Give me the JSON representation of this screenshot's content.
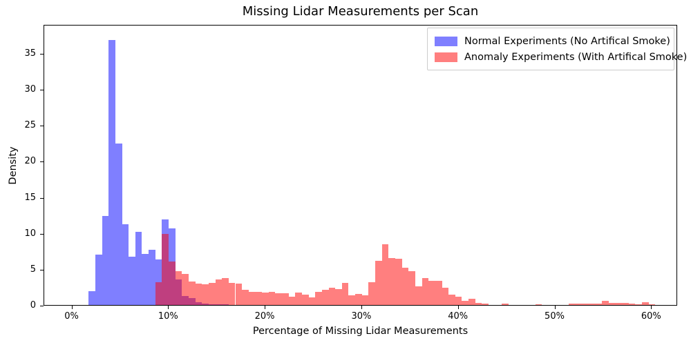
{
  "title": "Missing Lidar Measurements per Scan",
  "xlabel": "Percentage of Missing Lidar Measurements",
  "ylabel": "Density",
  "legend": {
    "items": [
      {
        "label": "Normal Experiments (No Artifical Smoke)",
        "color": "rgba(0,0,255,0.5)"
      },
      {
        "label": "Anomaly Experiments (With Artifical Smoke)",
        "color": "rgba(255,0,0,0.5)"
      }
    ]
  },
  "colors": {
    "normal_fill": "#8080ff",
    "anomaly_fill": "#ff8080",
    "overlap_fill": "#bf4080",
    "spine": "#000000"
  },
  "chart_data": {
    "type": "bar",
    "subtype": "overlapping-density-histograms",
    "title": "Missing Lidar Measurements per Scan",
    "xlabel": "Percentage of Missing Lidar Measurements",
    "ylabel": "Density",
    "xlim": [
      -2.9,
      62.7
    ],
    "ylim": [
      0,
      39
    ],
    "grid": false,
    "legend_position": "upper right",
    "x_ticks": [
      {
        "value": 0,
        "label": "0%"
      },
      {
        "value": 10,
        "label": "10%"
      },
      {
        "value": 20,
        "label": "20%"
      },
      {
        "value": 30,
        "label": "30%"
      },
      {
        "value": 40,
        "label": "40%"
      },
      {
        "value": 50,
        "label": "50%"
      },
      {
        "value": 60,
        "label": "60%"
      }
    ],
    "y_ticks": [
      {
        "value": 0,
        "label": "0"
      },
      {
        "value": 5,
        "label": "5"
      },
      {
        "value": 10,
        "label": "10"
      },
      {
        "value": 15,
        "label": "15"
      },
      {
        "value": 20,
        "label": "20"
      },
      {
        "value": 25,
        "label": "25"
      },
      {
        "value": 30,
        "label": "30"
      },
      {
        "value": 35,
        "label": "35"
      }
    ],
    "series": [
      {
        "name": "Normal Experiments (No Artifical Smoke)",
        "color": "rgba(0,0,255,0.5)",
        "bin_start_percent": 1.7,
        "bin_width_percent": 0.69,
        "densities": [
          1.9,
          7.0,
          12.4,
          36.8,
          22.4,
          11.2,
          6.7,
          10.2,
          7.1,
          7.7,
          6.3,
          11.9,
          10.6,
          3.5,
          1.2,
          1.0,
          0.35,
          0.15,
          0.1,
          0.08,
          0.06
        ]
      },
      {
        "name": "Anomaly Experiments (With Artifical Smoke)",
        "color": "rgba(255,0,0,0.5)",
        "bin_start_percent": 8.6,
        "bin_width_percent": 0.69,
        "densities": [
          3.2,
          9.9,
          6.0,
          4.7,
          4.35,
          3.3,
          3.0,
          2.9,
          3.1,
          3.55,
          3.7,
          3.1,
          2.95,
          2.1,
          1.85,
          1.85,
          1.73,
          1.85,
          1.63,
          1.63,
          1.15,
          1.73,
          1.47,
          1.08,
          1.85,
          2.11,
          2.37,
          2.18,
          3.07,
          1.31,
          1.53,
          1.31,
          3.13,
          6.11,
          8.44,
          6.52,
          6.42,
          5.15,
          4.67,
          2.59,
          3.77,
          3.39,
          3.33,
          2.43,
          1.47,
          1.15,
          0.6,
          0.9,
          0.26,
          0.17,
          0,
          0,
          0.17,
          0,
          0,
          0,
          0,
          0.1,
          0,
          0,
          0,
          0,
          0.15,
          0.2,
          0.2,
          0.15,
          0.15,
          0.6,
          0.26,
          0.3,
          0.26,
          0.17,
          0.1,
          0.43,
          0.05
        ]
      }
    ]
  }
}
